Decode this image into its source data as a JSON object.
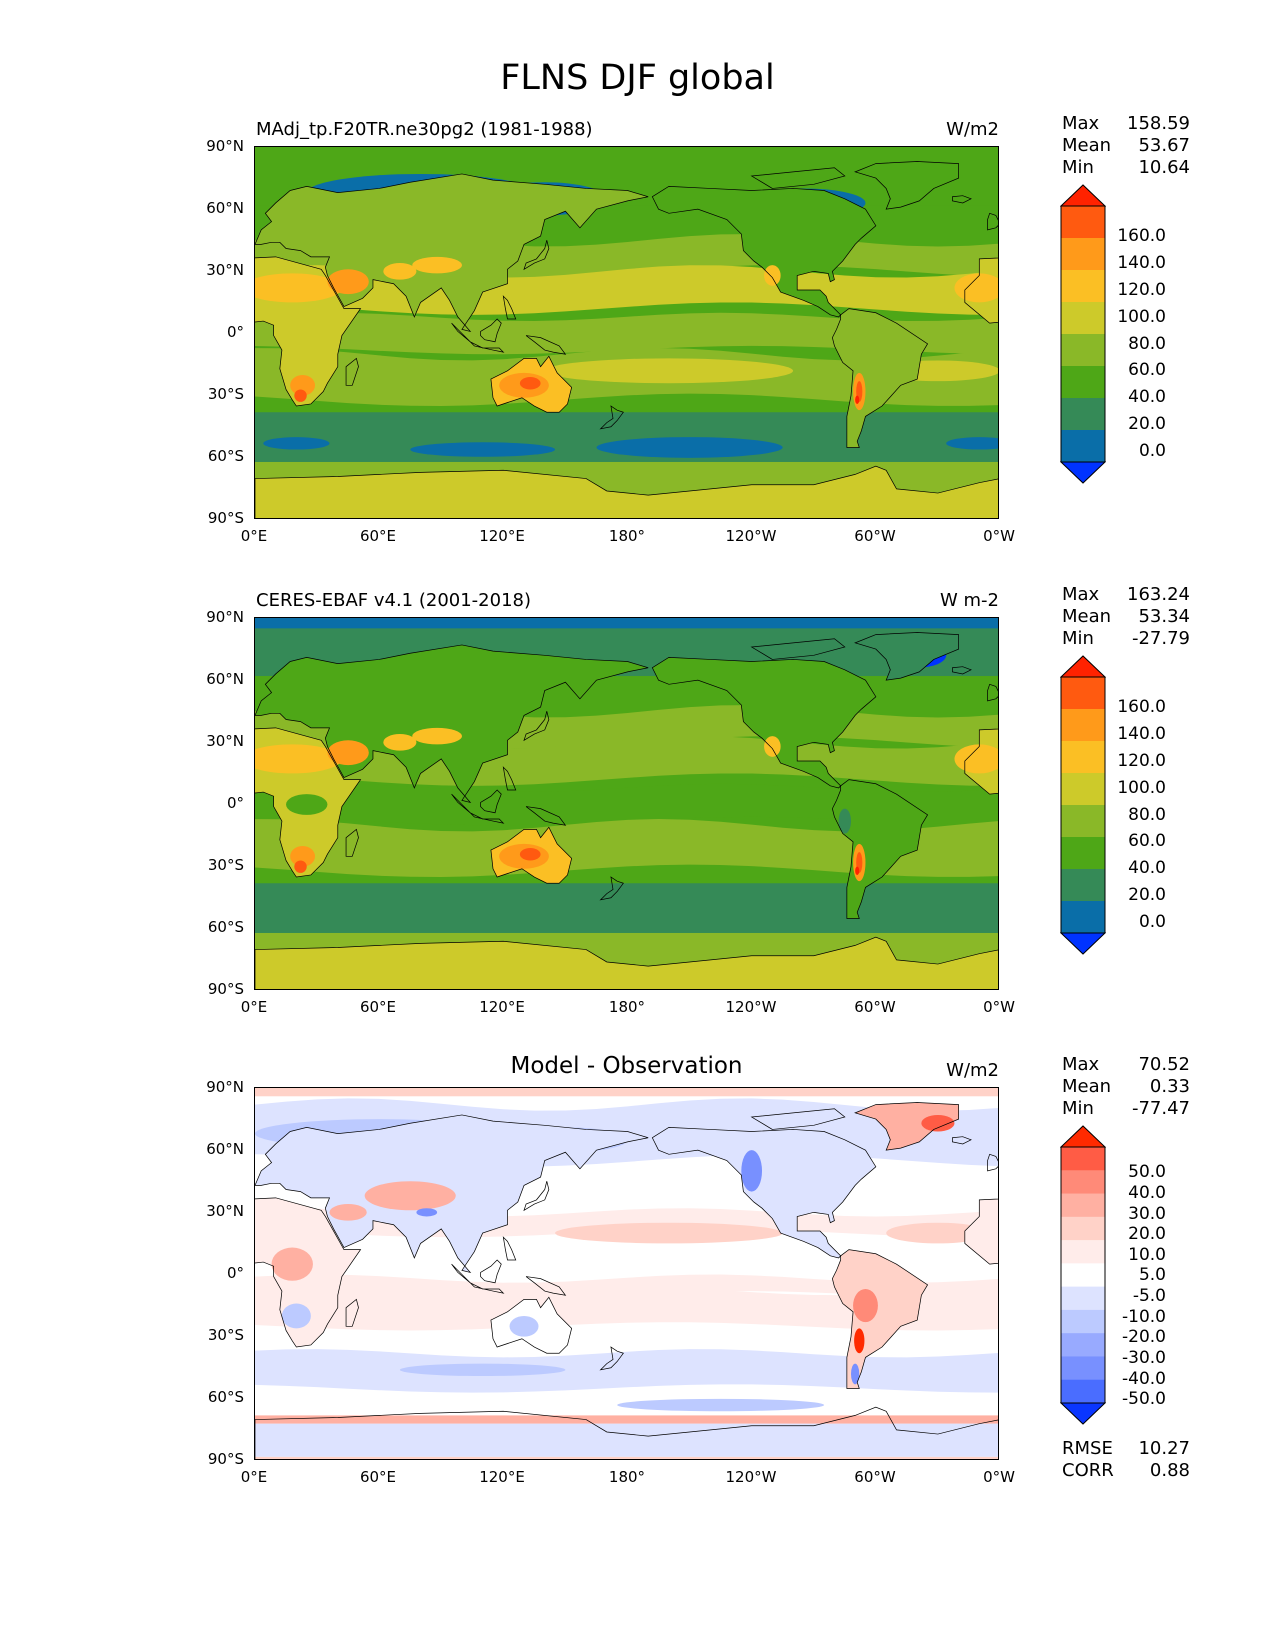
{
  "figure_title": "FLNS DJF global",
  "x_ticks": [
    "0°E",
    "60°E",
    "120°E",
    "180°",
    "120°W",
    "60°W",
    "0°W"
  ],
  "y_ticks": [
    "90°N",
    "60°N",
    "30°N",
    "0°",
    "30°S",
    "60°S",
    "90°S"
  ],
  "panels": [
    {
      "title_left": "MAdj_tp.F20TR.ne30pg2 (1981-1988)",
      "title_center": "",
      "units": "W/m2",
      "stats": {
        "max_label": "Max",
        "max": "158.59",
        "mean_label": "Mean",
        "mean": "53.67",
        "min_label": "Min",
        "min": "10.64"
      },
      "colorbar": {
        "labels": [
          "160.0",
          "140.0",
          "120.0",
          "100.0",
          "80.0",
          "60.0",
          "40.0",
          "20.0",
          "0.0"
        ],
        "colors": [
          "#ff2200",
          "#ff5a10",
          "#ff9a1a",
          "#fbbf24",
          "#cdca2a",
          "#8ab828",
          "#4ea717",
          "#358a57",
          "#0a6ea8",
          "#0033ff"
        ]
      }
    },
    {
      "title_left": "CERES-EBAF v4.1 (2001-2018)",
      "title_center": "",
      "units": "W m-2",
      "stats": {
        "max_label": "Max",
        "max": "163.24",
        "mean_label": "Mean",
        "mean": "53.34",
        "min_label": "Min",
        "min": "-27.79"
      },
      "colorbar": {
        "labels": [
          "160.0",
          "140.0",
          "120.0",
          "100.0",
          "80.0",
          "60.0",
          "40.0",
          "20.0",
          "0.0"
        ],
        "colors": [
          "#ff2200",
          "#ff5a10",
          "#ff9a1a",
          "#fbbf24",
          "#cdca2a",
          "#8ab828",
          "#4ea717",
          "#358a57",
          "#0a6ea8",
          "#0033ff"
        ]
      }
    },
    {
      "title_left": "",
      "title_center": "Model - Observation",
      "units": "W/m2",
      "stats": {
        "max_label": "Max",
        "max": "70.52",
        "mean_label": "Mean",
        "mean": "0.33",
        "min_label": "Min",
        "min": "-77.47"
      },
      "colorbar": {
        "labels": [
          "50.0",
          "40.0",
          "30.0",
          "20.0",
          "10.0",
          "5.0",
          "-5.0",
          "-10.0",
          "-20.0",
          "-30.0",
          "-40.0",
          "-50.0"
        ],
        "colors": [
          "#ff2a00",
          "#ff5c45",
          "#ff8a78",
          "#ffb0a2",
          "#ffd2c8",
          "#ffecea",
          "#ffffff",
          "#dde3ff",
          "#bccaff",
          "#98aaff",
          "#7890ff",
          "#4a6dff",
          "#0a36ff"
        ]
      },
      "diagnostics": {
        "rmse_label": "RMSE",
        "rmse": "10.27",
        "corr_label": "CORR",
        "corr": "0.88"
      }
    }
  ],
  "chart_data": {
    "type": "heatmap",
    "projection": "PlateCarree, central longitude 180",
    "variable": "FLNS",
    "season": "DJF",
    "x_range": [
      0,
      360
    ],
    "y_range": [
      -90,
      90
    ],
    "approx_fields": {
      "model_and_obs": {
        "Sahara/Arabia 15-30N": "100-130",
        "Australia interior": "110-140",
        "Andes/Patagonia": "120-160",
        "Southern Africa": "120-140",
        "tropical oceans": "40-60",
        "Southern Ocean 50-60S": "20-40",
        "Arctic/Siberia": "20-40",
        "Antarctica": "60-80"
      },
      "difference": {
        "Arctic/Siberia": "-10 to -30",
        "Southern Ocean": "-10 to -30",
        "Central Asia/Himalaya": "+10 to +30",
        "South America": "+20 to +50",
        "Greenland": "+30 to +50"
      }
    }
  }
}
